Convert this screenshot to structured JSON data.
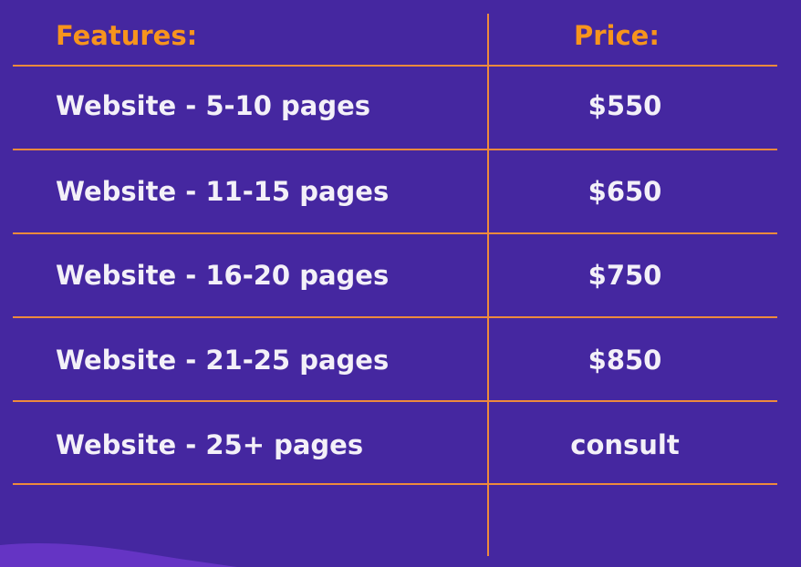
{
  "colors": {
    "background": "#4527a0",
    "accent": "#f7941d",
    "line": "#ee8a3c",
    "text": "#f3f0f8"
  },
  "header": {
    "features": "Features:",
    "price": "Price:"
  },
  "rows": [
    {
      "feature": "Website - 5-10 pages",
      "price": "$550"
    },
    {
      "feature": "Website - 11-15 pages",
      "price": "$650"
    },
    {
      "feature": "Website - 16-20 pages",
      "price": "$750"
    },
    {
      "feature": "Website - 21-25 pages",
      "price": "$850"
    },
    {
      "feature": "Website - 25+ pages",
      "price": "consult"
    }
  ]
}
